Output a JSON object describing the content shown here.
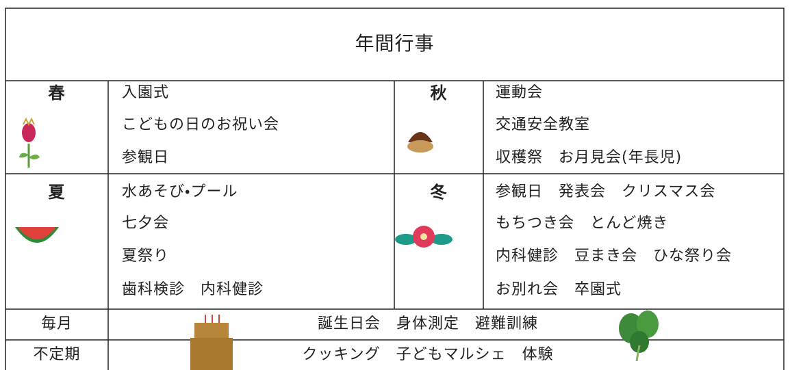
{
  "title": "年間行事",
  "seasons": [
    {
      "name": "春",
      "items": [
        "入園式",
        "こどもの日のお祝い会",
        "参観日"
      ]
    },
    {
      "name": "秋",
      "items": [
        "運動会",
        "交通安全教室",
        "収穫祭　お月見会(年長児)"
      ]
    },
    {
      "name": "夏",
      "items": [
        "水あそび・プール",
        "七夕会",
        "夏祭り",
        "歯科検診　内科健診"
      ]
    },
    {
      "name": "冬",
      "items": [
        "参観日　発表会　クリスマス会",
        "もちつき会　とんど焼き",
        "内科健診　豆まき会　ひな祭り会",
        "お別れ会　卒園式"
      ]
    }
  ],
  "regular": [
    {
      "label": "毎月",
      "text": "誕生日会　身体測定　避難訓練"
    },
    {
      "label": "不定期",
      "text": "クッキング　子どもマルシェ　体験"
    }
  ]
}
